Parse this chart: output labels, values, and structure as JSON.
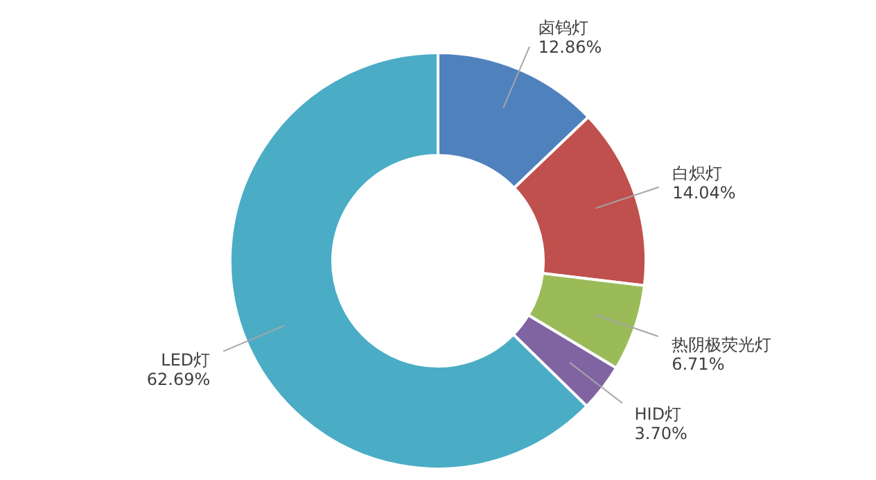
{
  "chart_data": {
    "type": "donut",
    "categories": [
      "卤钨灯",
      "白炽灯",
      "热阴极荧光灯",
      "HID灯",
      "LED灯"
    ],
    "values": [
      12.86,
      14.04,
      6.71,
      3.7,
      62.69
    ],
    "value_labels": [
      "12.86%",
      "14.04%",
      "6.71%",
      "3.70%",
      "62.69%"
    ],
    "colors": [
      "#4f81bd",
      "#c0504d",
      "#9bbb59",
      "#8064a2",
      "#4bacc6"
    ]
  }
}
